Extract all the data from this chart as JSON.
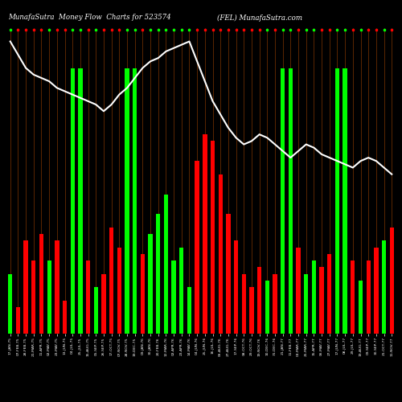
{
  "title": "MunafaSutra  Money Flow  Charts for 523574",
  "title2": "(FEL) MunafaSutra.com",
  "bg_color": "#000000",
  "bar_color_green": "#00ff00",
  "bar_color_red": "#ff0000",
  "line_color": "#ffffff",
  "grid_color": "#8B3A00",
  "categories": [
    "17-JAN-75",
    "07-FEB-75",
    "28-FEB-75",
    "21-MAR-75",
    "11-APR-75",
    "02-MAY-75",
    "23-MAY-75",
    "13-JUN-75",
    "04-JUL-75",
    "25-JUL-75",
    "15-AUG-75",
    "05-SEP-75",
    "26-SEP-75",
    "17-OCT-75",
    "07-NOV-75",
    "28-NOV-75",
    "19-DEC-75",
    "09-JAN-76",
    "30-JAN-76",
    "20-FEB-76",
    "12-MAR-76",
    "02-APR-76",
    "23-APR-76",
    "14-MAY-76",
    "04-JUN-76",
    "25-JUN-76",
    "16-JUL-76",
    "06-AUG-76",
    "27-AUG-76",
    "17-SEP-76",
    "08-OCT-76",
    "29-OCT-76",
    "19-NOV-76",
    "10-DEC-76",
    "31-DEC-76",
    "21-JAN-77",
    "11-FEB-77",
    "04-MAR-77",
    "25-MAR-77",
    "15-APR-77",
    "06-MAY-77",
    "27-MAY-77",
    "17-JUN-77",
    "08-JUL-77",
    "29-JUL-77",
    "19-AUG-77",
    "09-SEP-77",
    "30-SEP-77",
    "21-OCT-77",
    "11-NOV-77"
  ],
  "bar_heights": [
    18,
    8,
    28,
    22,
    30,
    22,
    28,
    10,
    80,
    80,
    22,
    14,
    18,
    32,
    26,
    80,
    80,
    24,
    30,
    36,
    42,
    22,
    26,
    14,
    52,
    60,
    58,
    48,
    36,
    28,
    18,
    14,
    20,
    16,
    18,
    80,
    80,
    26,
    18,
    22,
    20,
    24,
    80,
    80,
    22,
    16,
    22,
    26,
    28,
    32
  ],
  "bar_colors": [
    "G",
    "R",
    "R",
    "R",
    "R",
    "G",
    "R",
    "R",
    "G",
    "G",
    "R",
    "G",
    "R",
    "R",
    "R",
    "G",
    "G",
    "R",
    "G",
    "G",
    "G",
    "G",
    "G",
    "G",
    "R",
    "R",
    "R",
    "R",
    "R",
    "R",
    "R",
    "R",
    "R",
    "G",
    "R",
    "G",
    "G",
    "R",
    "G",
    "G",
    "R",
    "R",
    "G",
    "G",
    "R",
    "G",
    "R",
    "R",
    "G",
    "R"
  ],
  "line_values": [
    88,
    84,
    80,
    78,
    77,
    76,
    74,
    73,
    72,
    71,
    70,
    69,
    67,
    69,
    72,
    74,
    77,
    80,
    82,
    83,
    85,
    86,
    87,
    88,
    82,
    76,
    70,
    66,
    62,
    59,
    57,
    58,
    60,
    59,
    57,
    55,
    53,
    55,
    57,
    56,
    54,
    53,
    52,
    51,
    50,
    52,
    53,
    52,
    50,
    48
  ]
}
